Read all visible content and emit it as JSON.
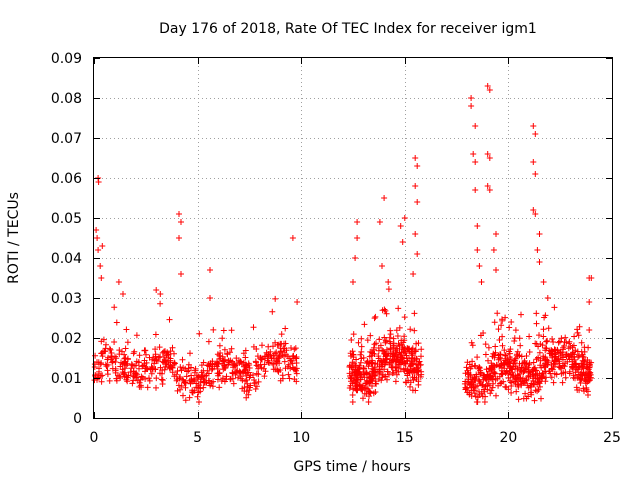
{
  "chart_data": {
    "type": "scatter",
    "title": "Day 176 of 2018, Rate Of TEC Index for receiver igm1",
    "xlabel": "GPS time / hours",
    "ylabel": "ROTI / TECUs",
    "xlim": [
      0,
      25
    ],
    "ylim": [
      0,
      0.09
    ],
    "xticks": [
      0,
      5,
      10,
      15,
      20,
      25
    ],
    "yticks": [
      0,
      0.01,
      0.02,
      0.03,
      0.04,
      0.05,
      0.06,
      0.07,
      0.08,
      0.09
    ],
    "xtick_labels": [
      "0",
      "5",
      "10",
      "15",
      "20",
      "25"
    ],
    "ytick_labels": [
      "0",
      "0.01",
      "0.02",
      "0.03",
      "0.04",
      "0.05",
      "0.06",
      "0.07",
      "0.08",
      "0.09"
    ],
    "grid": true,
    "marker": "+",
    "color": "#ff0000",
    "segments": [
      {
        "start": 0.0,
        "end": 9.8,
        "base": 0.012,
        "spread": 0.006,
        "count": 560
      },
      {
        "start": 12.3,
        "end": 15.8,
        "base": 0.013,
        "spread": 0.007,
        "count": 420
      },
      {
        "start": 17.9,
        "end": 24.0,
        "base": 0.012,
        "spread": 0.007,
        "count": 600
      }
    ],
    "highlights": [
      {
        "x": 0.1,
        "y": 0.047
      },
      {
        "x": 0.15,
        "y": 0.045
      },
      {
        "x": 0.2,
        "y": 0.042
      },
      {
        "x": 0.2,
        "y": 0.06
      },
      {
        "x": 0.22,
        "y": 0.059
      },
      {
        "x": 0.3,
        "y": 0.038
      },
      {
        "x": 0.35,
        "y": 0.035
      },
      {
        "x": 0.4,
        "y": 0.043
      },
      {
        "x": 1.2,
        "y": 0.034
      },
      {
        "x": 1.4,
        "y": 0.031
      },
      {
        "x": 3.0,
        "y": 0.032
      },
      {
        "x": 3.2,
        "y": 0.031
      },
      {
        "x": 4.1,
        "y": 0.051
      },
      {
        "x": 4.2,
        "y": 0.049
      },
      {
        "x": 4.1,
        "y": 0.045
      },
      {
        "x": 4.2,
        "y": 0.036
      },
      {
        "x": 5.6,
        "y": 0.037
      },
      {
        "x": 5.6,
        "y": 0.03
      },
      {
        "x": 9.6,
        "y": 0.045
      },
      {
        "x": 9.8,
        "y": 0.029
      },
      {
        "x": 12.5,
        "y": 0.034
      },
      {
        "x": 12.7,
        "y": 0.049
      },
      {
        "x": 12.7,
        "y": 0.045
      },
      {
        "x": 12.6,
        "y": 0.04
      },
      {
        "x": 13.8,
        "y": 0.049
      },
      {
        "x": 14.0,
        "y": 0.055
      },
      {
        "x": 13.9,
        "y": 0.038
      },
      {
        "x": 14.2,
        "y": 0.034
      },
      {
        "x": 14.8,
        "y": 0.048
      },
      {
        "x": 15.0,
        "y": 0.05
      },
      {
        "x": 14.9,
        "y": 0.044
      },
      {
        "x": 15.5,
        "y": 0.065
      },
      {
        "x": 15.6,
        "y": 0.063
      },
      {
        "x": 15.5,
        "y": 0.058
      },
      {
        "x": 15.6,
        "y": 0.054
      },
      {
        "x": 15.5,
        "y": 0.046
      },
      {
        "x": 15.6,
        "y": 0.041
      },
      {
        "x": 15.4,
        "y": 0.036
      },
      {
        "x": 18.2,
        "y": 0.08
      },
      {
        "x": 18.2,
        "y": 0.078
      },
      {
        "x": 18.4,
        "y": 0.073
      },
      {
        "x": 18.3,
        "y": 0.066
      },
      {
        "x": 18.4,
        "y": 0.064
      },
      {
        "x": 18.4,
        "y": 0.057
      },
      {
        "x": 18.5,
        "y": 0.048
      },
      {
        "x": 18.5,
        "y": 0.042
      },
      {
        "x": 18.6,
        "y": 0.038
      },
      {
        "x": 18.7,
        "y": 0.034
      },
      {
        "x": 19.0,
        "y": 0.083
      },
      {
        "x": 19.1,
        "y": 0.082
      },
      {
        "x": 19.0,
        "y": 0.066
      },
      {
        "x": 19.1,
        "y": 0.065
      },
      {
        "x": 19.0,
        "y": 0.058
      },
      {
        "x": 19.1,
        "y": 0.057
      },
      {
        "x": 19.4,
        "y": 0.046
      },
      {
        "x": 19.3,
        "y": 0.042
      },
      {
        "x": 19.4,
        "y": 0.037
      },
      {
        "x": 21.2,
        "y": 0.073
      },
      {
        "x": 21.3,
        "y": 0.071
      },
      {
        "x": 21.2,
        "y": 0.064
      },
      {
        "x": 21.3,
        "y": 0.061
      },
      {
        "x": 21.2,
        "y": 0.052
      },
      {
        "x": 21.3,
        "y": 0.051
      },
      {
        "x": 21.5,
        "y": 0.046
      },
      {
        "x": 21.4,
        "y": 0.042
      },
      {
        "x": 21.5,
        "y": 0.039
      },
      {
        "x": 21.7,
        "y": 0.034
      },
      {
        "x": 21.9,
        "y": 0.03
      },
      {
        "x": 23.9,
        "y": 0.035
      },
      {
        "x": 24.0,
        "y": 0.035
      },
      {
        "x": 23.9,
        "y": 0.029
      },
      {
        "x": 23.9,
        "y": 0.022
      }
    ]
  }
}
